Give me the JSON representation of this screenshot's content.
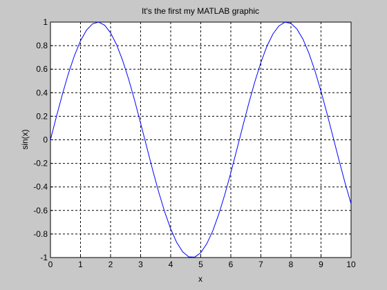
{
  "chart_data": {
    "type": "line",
    "title": "It's the first my MATLAB graphic",
    "x_label": "x",
    "y_label": "sin(x)",
    "x": [
      0,
      0.2,
      0.4,
      0.6,
      0.8,
      1,
      1.2,
      1.4,
      1.6,
      1.8,
      2,
      2.2,
      2.4,
      2.6,
      2.8,
      3,
      3.2,
      3.4,
      3.6,
      3.8,
      4,
      4.2,
      4.4,
      4.6,
      4.8,
      5,
      5.2,
      5.4,
      5.6,
      5.8,
      6,
      6.2,
      6.4,
      6.6,
      6.8,
      7,
      7.2,
      7.4,
      7.6,
      7.8,
      8,
      8.2,
      8.4,
      8.6,
      8.8,
      9,
      9.2,
      9.4,
      9.6,
      9.8,
      10
    ],
    "series": [
      {
        "color": "#0000ff",
        "values": [
          0,
          0.199,
          0.389,
          0.565,
          0.717,
          0.841,
          0.932,
          0.985,
          1.0,
          0.974,
          0.909,
          0.808,
          0.675,
          0.516,
          0.335,
          0.141,
          -0.058,
          -0.256,
          -0.443,
          -0.612,
          -0.757,
          -0.872,
          -0.952,
          -0.994,
          -0.996,
          -0.959,
          -0.883,
          -0.773,
          -0.631,
          -0.465,
          -0.279,
          -0.083,
          0.117,
          0.312,
          0.494,
          0.657,
          0.794,
          0.899,
          0.968,
          0.999,
          0.989,
          0.941,
          0.855,
          0.734,
          0.585,
          0.412,
          0.223,
          0.025,
          -0.174,
          -0.366,
          -0.544
        ]
      }
    ],
    "xlim": [
      0,
      10
    ],
    "ylim": [
      -1,
      1
    ],
    "xticks": [
      0,
      1,
      2,
      3,
      4,
      5,
      6,
      7,
      8,
      9,
      10
    ],
    "yticks": [
      -1,
      -0.8,
      -0.6,
      -0.4,
      -0.2,
      0,
      0.2,
      0.4,
      0.6,
      0.8,
      1
    ],
    "grid": true
  }
}
